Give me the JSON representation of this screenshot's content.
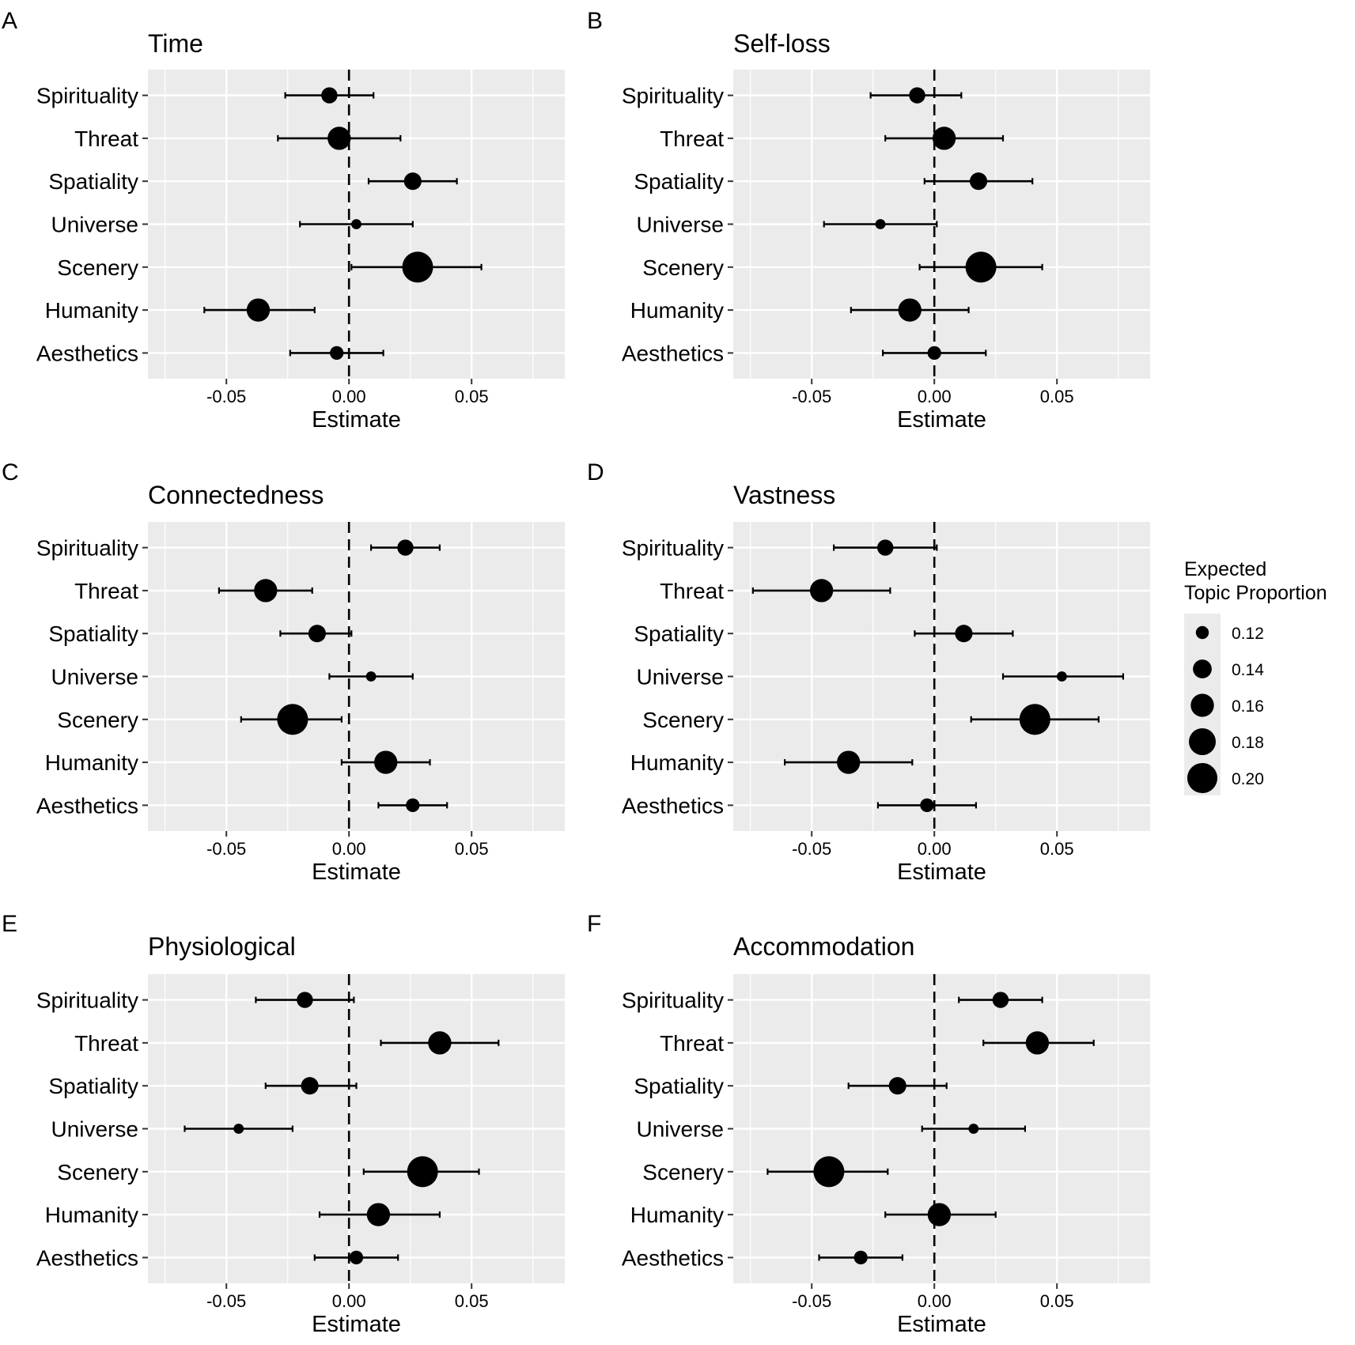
{
  "figure": {
    "xlabel": "Estimate",
    "legend": {
      "title_line1": "Expected",
      "title_line2": "Topic Proportion",
      "placement": "right",
      "sizes": [
        0.12,
        0.14,
        0.16,
        0.18,
        0.2
      ],
      "labels": [
        "0.12",
        "0.14",
        "0.16",
        "0.18",
        "0.20"
      ]
    }
  },
  "chart_data": [
    {
      "type": "scatter",
      "panel": "A",
      "title": "Time",
      "xlabel": "Estimate",
      "xlim": [
        -0.082,
        0.088
      ],
      "xticks": [
        -0.05,
        0.0,
        0.05
      ],
      "xtick_labels": [
        "-0.05",
        "0.00",
        "0.05"
      ],
      "grid": true,
      "reference_line": 0,
      "categories": [
        "Spirituality",
        "Threat",
        "Spatiality",
        "Universe",
        "Scenery",
        "Humanity",
        "Aesthetics"
      ],
      "estimate": [
        -0.008,
        -0.004,
        0.026,
        0.003,
        0.028,
        -0.037,
        -0.005
      ],
      "ci_low": [
        -0.026,
        -0.029,
        0.008,
        -0.02,
        0.001,
        -0.059,
        -0.024
      ],
      "ci_high": [
        0.01,
        0.021,
        0.044,
        0.026,
        0.054,
        -0.014,
        0.014
      ],
      "size": [
        0.13,
        0.16,
        0.135,
        0.113,
        0.205,
        0.16,
        0.122
      ]
    },
    {
      "type": "scatter",
      "panel": "B",
      "title": "Self-loss",
      "xlabel": "Estimate",
      "xlim": [
        -0.082,
        0.088
      ],
      "xticks": [
        -0.05,
        0.0,
        0.05
      ],
      "xtick_labels": [
        "-0.05",
        "0.00",
        "0.05"
      ],
      "grid": true,
      "reference_line": 0,
      "categories": [
        "Spirituality",
        "Threat",
        "Spatiality",
        "Universe",
        "Scenery",
        "Humanity",
        "Aesthetics"
      ],
      "estimate": [
        -0.007,
        0.004,
        0.018,
        -0.022,
        0.019,
        -0.01,
        0.0
      ],
      "ci_low": [
        -0.026,
        -0.02,
        -0.004,
        -0.045,
        -0.006,
        -0.034,
        -0.021
      ],
      "ci_high": [
        0.011,
        0.028,
        0.04,
        0.001,
        0.044,
        0.014,
        0.021
      ],
      "size": [
        0.13,
        0.16,
        0.135,
        0.113,
        0.205,
        0.16,
        0.122
      ]
    },
    {
      "type": "scatter",
      "panel": "C",
      "title": "Connectedness",
      "xlabel": "Estimate",
      "xlim": [
        -0.082,
        0.088
      ],
      "xticks": [
        -0.05,
        0.0,
        0.05
      ],
      "xtick_labels": [
        "-0.05",
        "0.00",
        "0.05"
      ],
      "grid": true,
      "reference_line": 0,
      "categories": [
        "Spirituality",
        "Threat",
        "Spatiality",
        "Universe",
        "Scenery",
        "Humanity",
        "Aesthetics"
      ],
      "estimate": [
        0.023,
        -0.034,
        -0.013,
        0.009,
        -0.023,
        0.015,
        0.026
      ],
      "ci_low": [
        0.009,
        -0.053,
        -0.028,
        -0.008,
        -0.044,
        -0.003,
        0.012
      ],
      "ci_high": [
        0.037,
        -0.015,
        0.001,
        0.026,
        -0.003,
        0.033,
        0.04
      ],
      "size": [
        0.13,
        0.16,
        0.135,
        0.113,
        0.205,
        0.16,
        0.122
      ]
    },
    {
      "type": "scatter",
      "panel": "D",
      "title": "Vastness",
      "xlabel": "Estimate",
      "xlim": [
        -0.082,
        0.088
      ],
      "xticks": [
        -0.05,
        0.0,
        0.05
      ],
      "xtick_labels": [
        "-0.05",
        "0.00",
        "0.05"
      ],
      "grid": true,
      "reference_line": 0,
      "categories": [
        "Spirituality",
        "Threat",
        "Spatiality",
        "Universe",
        "Scenery",
        "Humanity",
        "Aesthetics"
      ],
      "estimate": [
        -0.02,
        -0.046,
        0.012,
        0.052,
        0.041,
        -0.035,
        -0.003
      ],
      "ci_low": [
        -0.041,
        -0.074,
        -0.008,
        0.028,
        0.015,
        -0.061,
        -0.023
      ],
      "ci_high": [
        0.001,
        -0.018,
        0.032,
        0.077,
        0.067,
        -0.009,
        0.017
      ],
      "size": [
        0.13,
        0.16,
        0.135,
        0.113,
        0.205,
        0.16,
        0.122
      ]
    },
    {
      "type": "scatter",
      "panel": "E",
      "title": "Physiological",
      "xlabel": "Estimate",
      "xlim": [
        -0.082,
        0.088
      ],
      "xticks": [
        -0.05,
        0.0,
        0.05
      ],
      "xtick_labels": [
        "-0.05",
        "0.00",
        "0.05"
      ],
      "grid": true,
      "reference_line": 0,
      "categories": [
        "Spirituality",
        "Threat",
        "Spatiality",
        "Universe",
        "Scenery",
        "Humanity",
        "Aesthetics"
      ],
      "estimate": [
        -0.018,
        0.037,
        -0.016,
        -0.045,
        0.03,
        0.012,
        0.003
      ],
      "ci_low": [
        -0.038,
        0.013,
        -0.034,
        -0.067,
        0.006,
        -0.012,
        -0.014
      ],
      "ci_high": [
        0.002,
        0.061,
        0.003,
        -0.023,
        0.053,
        0.037,
        0.02
      ],
      "size": [
        0.13,
        0.16,
        0.135,
        0.113,
        0.205,
        0.16,
        0.122
      ]
    },
    {
      "type": "scatter",
      "panel": "F",
      "title": "Accommodation",
      "xlabel": "Estimate",
      "xlim": [
        -0.082,
        0.088
      ],
      "xticks": [
        -0.05,
        0.0,
        0.05
      ],
      "xtick_labels": [
        "-0.05",
        "0.00",
        "0.05"
      ],
      "grid": true,
      "reference_line": 0,
      "categories": [
        "Spirituality",
        "Threat",
        "Spatiality",
        "Universe",
        "Scenery",
        "Humanity",
        "Aesthetics"
      ],
      "estimate": [
        0.027,
        0.042,
        -0.015,
        0.016,
        -0.043,
        0.002,
        -0.03
      ],
      "ci_low": [
        0.01,
        0.02,
        -0.035,
        -0.005,
        -0.068,
        -0.02,
        -0.047
      ],
      "ci_high": [
        0.044,
        0.065,
        0.005,
        0.037,
        -0.019,
        0.025,
        -0.013
      ],
      "size": [
        0.13,
        0.16,
        0.135,
        0.113,
        0.205,
        0.16,
        0.122
      ]
    }
  ]
}
